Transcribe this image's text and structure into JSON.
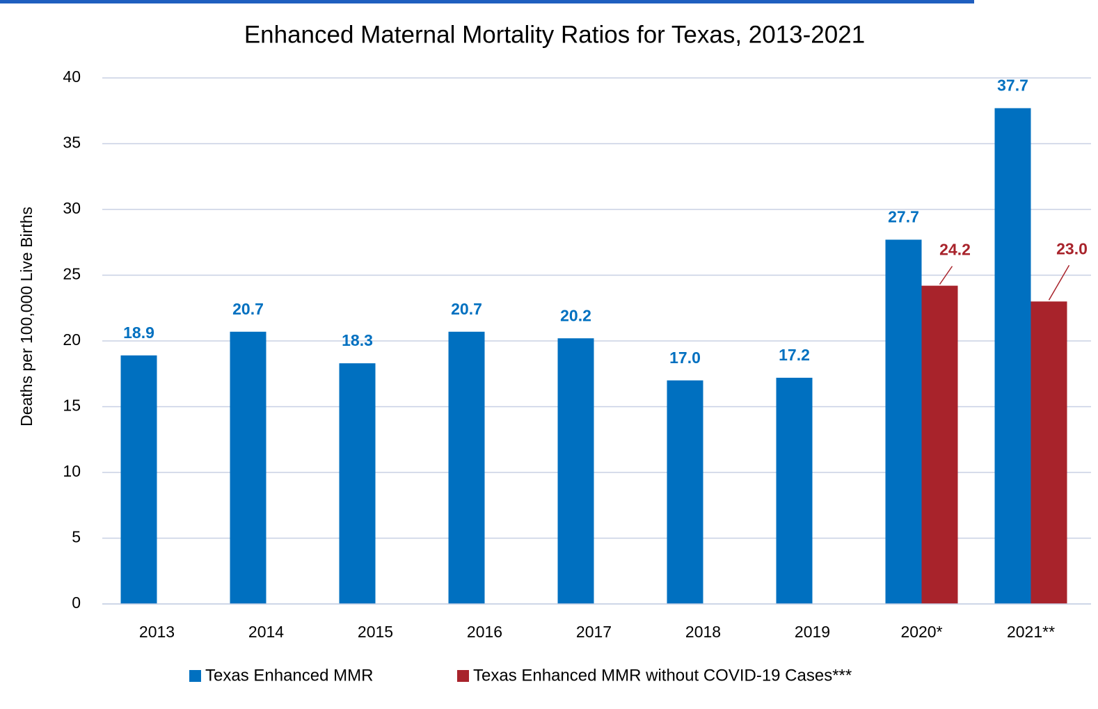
{
  "chart_data": {
    "type": "bar",
    "title": "Enhanced Maternal Mortality Ratios for Texas, 2013-2021",
    "y_label": "Deaths per 100,000 Live Births",
    "categories": [
      "2013",
      "2014",
      "2015",
      "2016",
      "2017",
      "2018",
      "2019",
      "2020*",
      "2021**"
    ],
    "series": [
      {
        "name": "Texas Enhanced MMR",
        "color": "#0070c0",
        "values": [
          18.9,
          20.7,
          18.3,
          20.7,
          20.2,
          17.0,
          17.2,
          27.7,
          37.7
        ],
        "value_labels": [
          "18.9",
          "20.7",
          "18.3",
          "20.7",
          "20.2",
          "17.0",
          "17.2",
          "27.7",
          "37.7"
        ]
      },
      {
        "name": "Texas Enhanced MMR without COVID-19 Cases***",
        "color": "#a8232b",
        "values": [
          null,
          null,
          null,
          null,
          null,
          null,
          null,
          24.2,
          23.0
        ],
        "value_labels": [
          null,
          null,
          null,
          null,
          null,
          null,
          null,
          "24.2",
          "23.0"
        ]
      }
    ],
    "ylim": [
      0,
      40
    ],
    "yticks": [
      0,
      5,
      10,
      15,
      20,
      25,
      30,
      35,
      40
    ],
    "grid": true,
    "legend": "bottom"
  }
}
